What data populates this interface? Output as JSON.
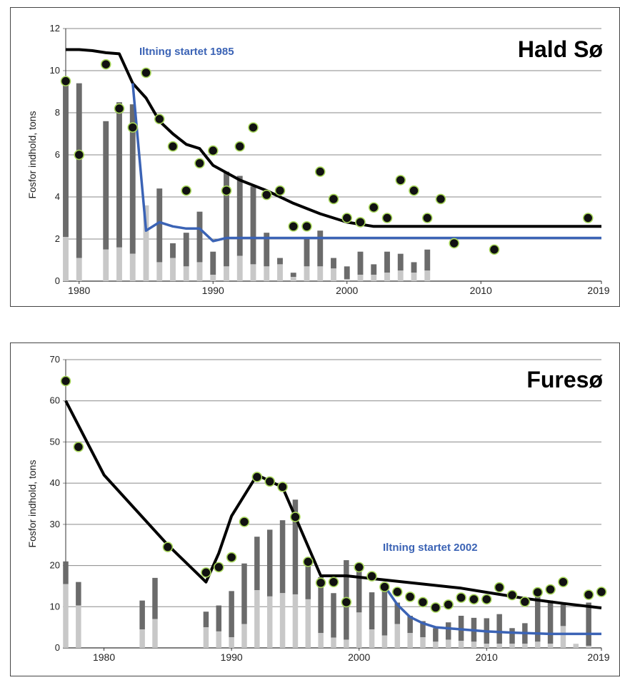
{
  "chart_data": [
    {
      "type": "bar",
      "title": "Hald Sø",
      "ylabel": "Fosfor indhold, tons",
      "xlabel": "",
      "ylim": [
        0,
        12
      ],
      "xlim": [
        1979,
        2019
      ],
      "yticks": [
        0,
        2,
        4,
        6,
        8,
        10,
        12
      ],
      "xticks": [
        "1980",
        "1990",
        "2000",
        "2010",
        "2019"
      ],
      "grid": true,
      "annotation": "Iltning startet 1985",
      "colors": {
        "dark_bar": "#6b6b6b",
        "light_bar": "#c8c8c8",
        "trend": "#000000",
        "oxygenation": "#3b63b5",
        "point_fill": "#111111",
        "point_edge": "#a7d65a"
      },
      "series": [
        {
          "name": "",
          "kind": "stacked_bar_light",
          "x": [
            1979,
            1980,
            1982,
            1983,
            1984,
            1985,
            1986,
            1987,
            1988,
            1989,
            1990,
            1991,
            1992,
            1993,
            1994,
            1995,
            1996,
            1997,
            1998,
            1999,
            2000,
            2001,
            2002,
            2003,
            2004,
            2005,
            2006
          ],
          "values": [
            2.1,
            1.1,
            1.5,
            1.6,
            1.3,
            3.6,
            0.9,
            1.1,
            0.7,
            0.9,
            0.3,
            0.7,
            1.2,
            0.8,
            0.7,
            0.8,
            0.2,
            0.7,
            0.7,
            0.6,
            0.1,
            0.3,
            0.3,
            0.4,
            0.5,
            0.4,
            0.5
          ]
        },
        {
          "name": "",
          "kind": "stacked_bar_total",
          "x": [
            1979,
            1980,
            1982,
            1983,
            1984,
            1985,
            1986,
            1987,
            1988,
            1989,
            1990,
            1991,
            1992,
            1993,
            1994,
            1995,
            1996,
            1997,
            1998,
            1999,
            2000,
            2001,
            2002,
            2003,
            2004,
            2005,
            2006
          ],
          "values": [
            9.4,
            9.4,
            7.6,
            8.5,
            8.4,
            3.6,
            4.4,
            1.8,
            2.3,
            3.3,
            1.4,
            5.2,
            5.0,
            4.5,
            2.3,
            1.1,
            0.4,
            2.0,
            2.4,
            1.1,
            0.7,
            1.4,
            0.8,
            1.4,
            1.3,
            0.9,
            1.5
          ]
        },
        {
          "name": "",
          "kind": "scatter",
          "x": [
            1979,
            1980,
            1982,
            1983,
            1984,
            1985,
            1986,
            1987,
            1988,
            1989,
            1990,
            1991,
            1992,
            1993,
            1994,
            1995,
            1996,
            1997,
            1998,
            1999,
            2000,
            2001,
            2002,
            2003,
            2004,
            2005,
            2006,
            2007,
            2008,
            2011,
            2018
          ],
          "values": [
            9.5,
            6.0,
            10.3,
            8.2,
            7.3,
            9.9,
            7.7,
            6.4,
            4.3,
            5.6,
            6.2,
            4.3,
            6.4,
            7.3,
            4.1,
            4.3,
            2.6,
            2.6,
            5.2,
            3.9,
            3.0,
            2.8,
            3.5,
            3.0,
            4.8,
            4.3,
            3.0,
            3.9,
            1.8,
            1.5,
            3.0
          ]
        },
        {
          "name": "",
          "kind": "line",
          "color": "#000000",
          "x": [
            1979,
            1980,
            1981,
            1982,
            1983,
            1984,
            1985,
            1986,
            1987,
            1988,
            1989,
            1990,
            1992,
            1994,
            1996,
            1998,
            2000,
            2002,
            2005,
            2010,
            2019
          ],
          "values": [
            11.0,
            11.0,
            10.95,
            10.85,
            10.8,
            9.4,
            8.7,
            7.6,
            7.0,
            6.5,
            6.3,
            5.5,
            4.8,
            4.3,
            3.7,
            3.2,
            2.8,
            2.6,
            2.6,
            2.6,
            2.6
          ]
        },
        {
          "name": "",
          "kind": "line",
          "color": "#3b63b5",
          "x": [
            1984,
            1985,
            1986,
            1987,
            1988,
            1989,
            1990,
            1991,
            1995,
            2000,
            2010,
            2019
          ],
          "values": [
            9.4,
            2.4,
            2.8,
            2.6,
            2.5,
            2.5,
            1.9,
            2.05,
            2.05,
            2.05,
            2.05,
            2.05
          ]
        }
      ]
    },
    {
      "type": "bar",
      "title": "Furesø",
      "ylabel": "Fosfor indhold, tons",
      "xlabel": "",
      "ylim": [
        0,
        70
      ],
      "xlim": [
        1977,
        2019
      ],
      "yticks": [
        0,
        10,
        20,
        30,
        40,
        50,
        60,
        70
      ],
      "xticks": [
        "1980",
        "1990",
        "2000",
        "2010",
        "2019"
      ],
      "grid": true,
      "annotation": "Iltning startet 2002",
      "colors": {
        "dark_bar": "#6b6b6b",
        "light_bar": "#c8c8c8",
        "trend": "#000000",
        "oxygenation": "#3b63b5",
        "point_fill": "#111111",
        "point_edge": "#a7d65a"
      },
      "series": [
        {
          "name": "",
          "kind": "stacked_bar_light",
          "x": [
            1977,
            1978,
            1983,
            1984,
            1988,
            1989,
            1990,
            1991,
            1992,
            1993,
            1994,
            1995,
            1996,
            1997,
            1998,
            1999,
            2000,
            2001,
            2002,
            2003,
            2004,
            2005,
            2006,
            2007,
            2008,
            2009,
            2010,
            2011,
            2012,
            2013,
            2014,
            2015,
            2016,
            2017,
            2018
          ],
          "values": [
            15.5,
            10.3,
            4.5,
            7.0,
            5.0,
            4.0,
            2.6,
            5.8,
            14.0,
            12.5,
            13.3,
            13.0,
            11.8,
            3.6,
            2.5,
            2.0,
            8.6,
            4.5,
            3.0,
            5.8,
            3.6,
            2.6,
            1.5,
            2.0,
            1.7,
            1.5,
            1.0,
            1.0,
            1.0,
            1.0,
            1.5,
            1.0,
            5.3,
            1.0,
            0.5
          ],
          "note": "light grey segment"
        },
        {
          "name": "",
          "kind": "stacked_bar_total",
          "x": [
            1977,
            1978,
            1983,
            1984,
            1988,
            1989,
            1990,
            1991,
            1992,
            1993,
            1994,
            1995,
            1996,
            1997,
            1998,
            1999,
            2000,
            2001,
            2002,
            2003,
            2004,
            2005,
            2006,
            2007,
            2008,
            2009,
            2010,
            2011,
            2012,
            2013,
            2014,
            2015,
            2016,
            2017,
            2018
          ],
          "values": [
            21.0,
            16.0,
            11.5,
            17.0,
            8.8,
            10.3,
            13.8,
            20.5,
            27.0,
            28.7,
            31.0,
            36.0,
            21.0,
            17.2,
            13.3,
            21.3,
            19.5,
            13.5,
            14.0,
            11.0,
            7.8,
            6.5,
            4.8,
            6.2,
            7.8,
            7.3,
            7.2,
            8.2,
            4.8,
            6.0,
            13.3,
            11.5,
            10.5,
            0.5,
            11.0
          ]
        },
        {
          "name": "",
          "kind": "scatter",
          "x": [
            1977,
            1978,
            1985,
            1988,
            1989,
            1990,
            1991,
            1992,
            1993,
            1994,
            1995,
            1996,
            1997,
            1998,
            1999,
            2000,
            2001,
            2002,
            2003,
            2004,
            2005,
            2006,
            2007,
            2008,
            2009,
            2010,
            2011,
            2012,
            2013,
            2014,
            2015,
            2016,
            2018,
            2019
          ],
          "values": [
            64.8,
            48.8,
            24.5,
            18.3,
            19.6,
            22.0,
            30.6,
            41.5,
            40.4,
            39.1,
            31.8,
            20.9,
            15.8,
            16.0,
            11.1,
            19.6,
            17.4,
            14.8,
            13.6,
            12.4,
            11.1,
            9.8,
            10.5,
            12.2,
            11.8,
            11.8,
            14.7,
            12.8,
            11.2,
            13.5,
            14.2,
            16.0,
            12.9,
            13.6
          ]
        },
        {
          "name": "",
          "kind": "line",
          "color": "#000000",
          "x": [
            1977,
            1980,
            1985,
            1988,
            1989,
            1990,
            1992,
            1994,
            1997,
            1999,
            2002,
            2005,
            2008,
            2010,
            2013,
            2016,
            2019
          ],
          "values": [
            60.0,
            42.0,
            25.0,
            16.0,
            23.0,
            32.0,
            42.0,
            39.0,
            17.5,
            17.5,
            16.5,
            15.5,
            14.5,
            13.5,
            12.0,
            10.8,
            9.7
          ]
        },
        {
          "name": "",
          "kind": "line",
          "color": "#3b63b5",
          "x": [
            2002,
            2003,
            2004,
            2005,
            2006,
            2008,
            2010,
            2012,
            2015,
            2019
          ],
          "values": [
            15.0,
            10.5,
            7.5,
            6.0,
            5.0,
            4.5,
            4.0,
            3.7,
            3.4,
            3.4
          ]
        }
      ]
    }
  ]
}
